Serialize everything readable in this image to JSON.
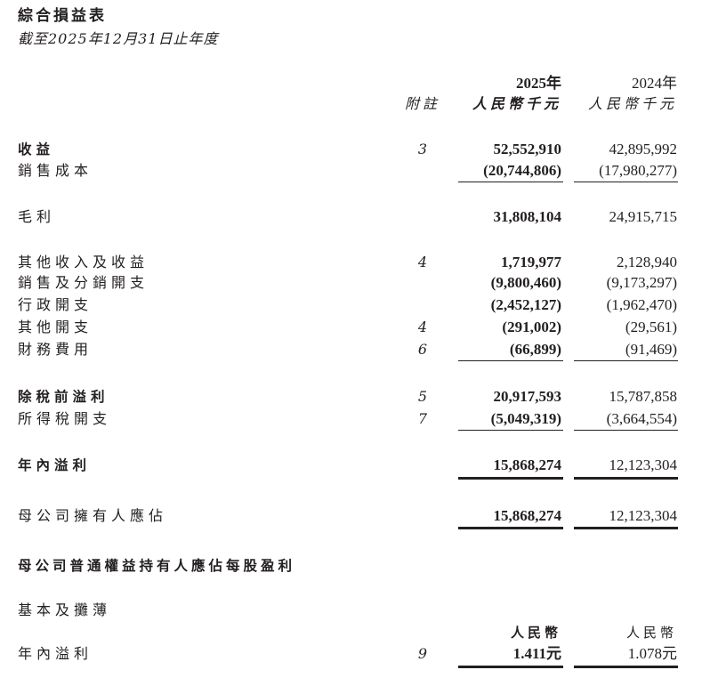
{
  "title": "綜合損益表",
  "subtitle": "截至2025年12月31日止年度",
  "header": {
    "note": "附註",
    "year1": "2025年",
    "year2": "2024年",
    "unit1": "人民幣千元",
    "unit2": "人民幣千元"
  },
  "rows": [
    {
      "label": "收益",
      "note": "3",
      "v1": "52,552,910",
      "v2": "42,895,992"
    },
    {
      "label": "銷售成本",
      "note": "",
      "v1": "(20,744,806)",
      "v2": "(17,980,277)"
    },
    {
      "label": "毛利",
      "note": "",
      "v1": "31,808,104",
      "v2": "24,915,715"
    },
    {
      "label": "其他收入及收益",
      "note": "4",
      "v1": "1,719,977",
      "v2": "2,128,940"
    },
    {
      "label": "銷售及分銷開支",
      "note": "",
      "v1": "(9,800,460)",
      "v2": "(9,173,297)"
    },
    {
      "label": "行政開支",
      "note": "",
      "v1": "(2,452,127)",
      "v2": "(1,962,470)"
    },
    {
      "label": "其他開支",
      "note": "4",
      "v1": "(291,002)",
      "v2": "(29,561)"
    },
    {
      "label": "財務費用",
      "note": "6",
      "v1": "(66,899)",
      "v2": "(91,469)"
    },
    {
      "label": "除稅前溢利",
      "note": "5",
      "v1": "20,917,593",
      "v2": "15,787,858"
    },
    {
      "label": "所得稅開支",
      "note": "7",
      "v1": "(5,049,319)",
      "v2": "(3,664,554)"
    },
    {
      "label": "年內溢利",
      "note": "",
      "v1": "15,868,274",
      "v2": "12,123,304"
    },
    {
      "label": "母公司擁有人應佔",
      "note": "",
      "v1": "15,868,274",
      "v2": "12,123,304"
    }
  ],
  "eps": {
    "heading": "母公司普通權益持有人應佔每股盈利",
    "sub": "基本及攤薄",
    "unit1": "人民幣",
    "unit2": "人民幣",
    "label": "年內溢利",
    "note": "9",
    "v1": "1.411元",
    "v2": "1.078元"
  }
}
